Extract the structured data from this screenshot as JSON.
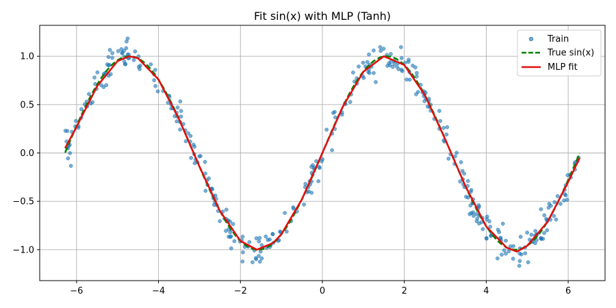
{
  "chart_data": {
    "type": "scatter",
    "title": "Fit sin(x) with MLP (Tanh)",
    "xlabel": "",
    "ylabel": "",
    "xlim": [
      -6.9,
      6.9
    ],
    "ylim": [
      -1.32,
      1.32
    ],
    "xticks": [
      -6,
      -4,
      -2,
      0,
      2,
      4,
      6
    ],
    "yticks": [
      -1.0,
      -0.5,
      0.0,
      0.5,
      1.0
    ],
    "xtick_labels": [
      "−6",
      "−4",
      "−2",
      "0",
      "2",
      "4",
      "6"
    ],
    "ytick_labels": [
      "−1.0",
      "−0.5",
      "0.0",
      "0.5",
      "1.0"
    ],
    "grid": true,
    "legend_position": "top-right",
    "series": [
      {
        "name": "Train",
        "kind": "scatter",
        "color": "#1f77b4",
        "point_count": 400,
        "x_range": [
          -6.28,
          6.28
        ],
        "model": "sin(x) + noise",
        "noise_std": 0.08
      },
      {
        "name": "True sin(x)",
        "kind": "line",
        "style": "dashed",
        "color": "#008000",
        "function": "sin(x)",
        "x_range": [
          -6.28,
          6.28
        ]
      },
      {
        "name": "MLP fit",
        "kind": "line",
        "style": "solid",
        "color": "#e01010",
        "x_range": [
          -6.28,
          6.28
        ],
        "x": [
          -6.28,
          -6.0,
          -5.5,
          -5.0,
          -4.71,
          -4.5,
          -4.0,
          -3.5,
          -3.0,
          -2.5,
          -2.0,
          -1.6,
          -1.2,
          -1.0,
          -0.5,
          0.0,
          0.5,
          1.0,
          1.5,
          2.0,
          2.5,
          3.0,
          3.5,
          4.0,
          4.5,
          4.75,
          5.0,
          5.5,
          6.0,
          6.28
        ],
        "y": [
          0.05,
          0.27,
          0.69,
          0.95,
          1.0,
          0.98,
          0.76,
          0.35,
          -0.14,
          -0.6,
          -0.91,
          -1.0,
          -0.93,
          -0.84,
          -0.48,
          0.0,
          0.48,
          0.84,
          1.0,
          0.91,
          0.6,
          0.14,
          -0.35,
          -0.76,
          -0.98,
          -1.02,
          -0.96,
          -0.71,
          -0.3,
          -0.05
        ]
      }
    ]
  }
}
